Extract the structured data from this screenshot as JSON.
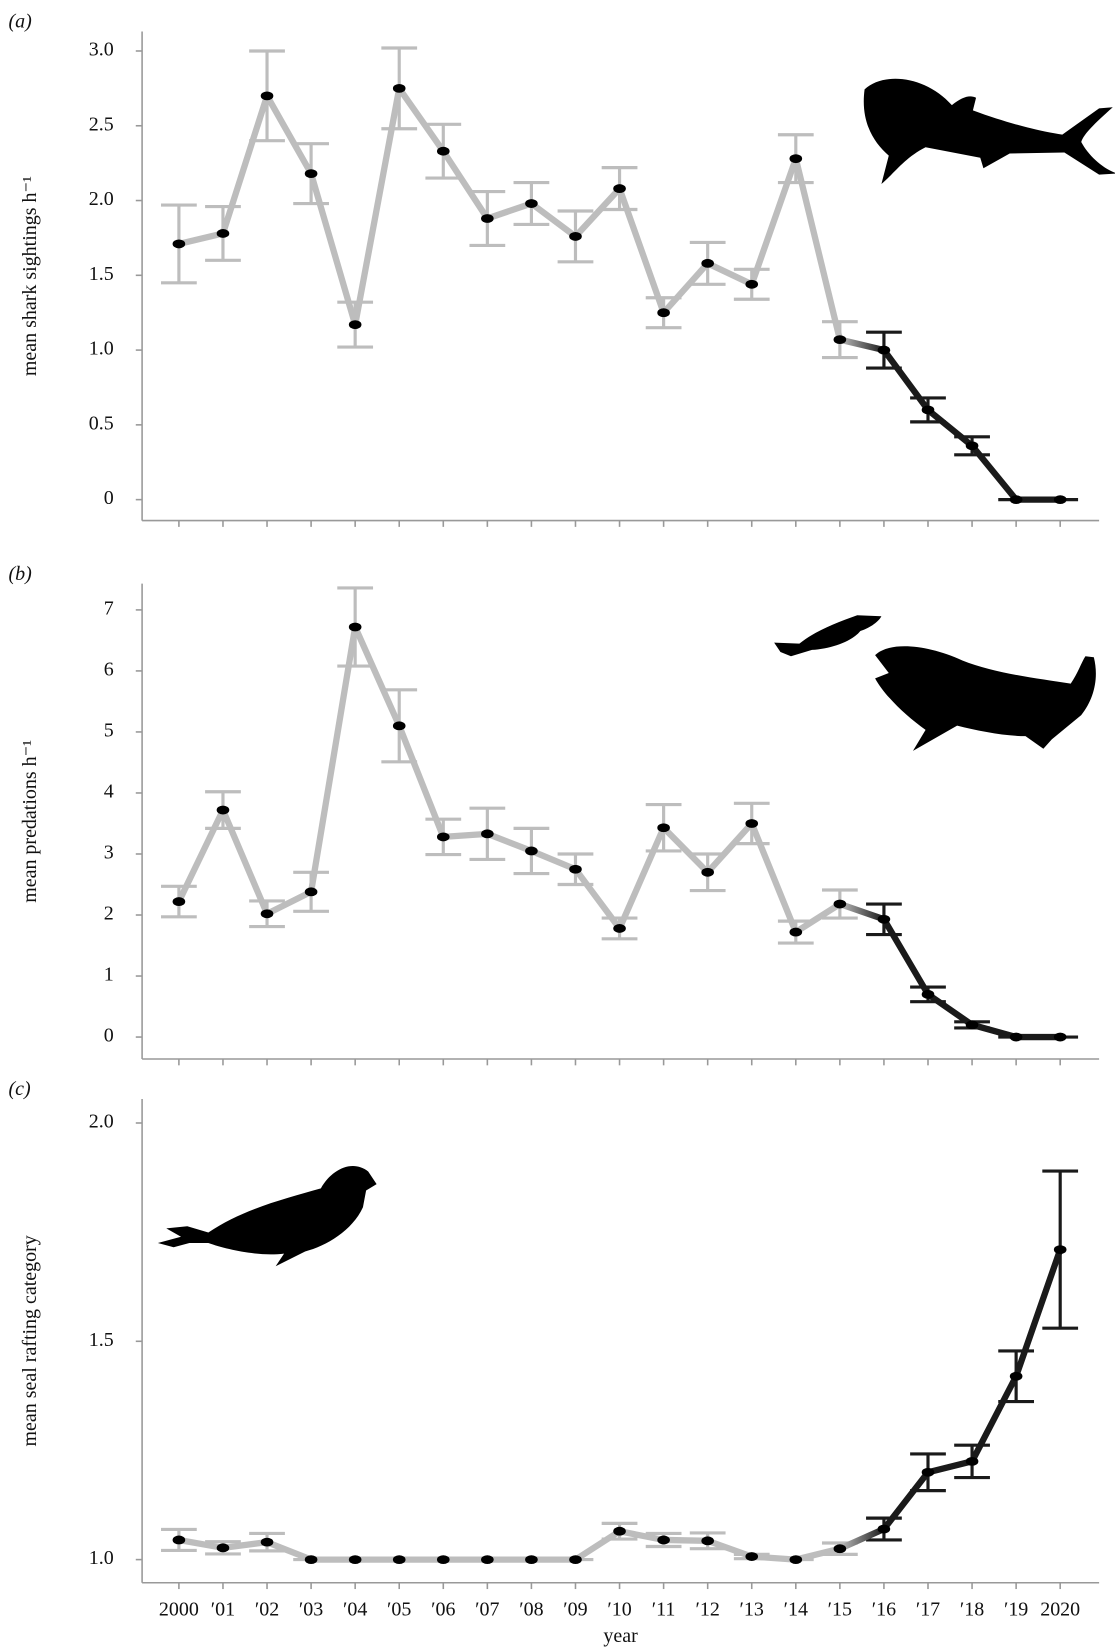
{
  "chart_data": [
    {
      "type": "line",
      "panel": "(a)",
      "ylabel": "mean shark sightings h⁻¹",
      "ylim": [
        -0.14,
        3.13
      ],
      "yticks": [
        0,
        0.5,
        {
          "value": 1,
          "label": "1.0"
        },
        1.5,
        {
          "value": 2,
          "label": "2.0"
        },
        2.5,
        {
          "value": 3,
          "label": "3.0"
        }
      ],
      "values": [
        1.71,
        1.78,
        2.7,
        2.18,
        1.17,
        2.75,
        2.33,
        1.88,
        1.98,
        1.76,
        2.08,
        1.25,
        1.58,
        1.44,
        2.28,
        1.07,
        1.0,
        0.6,
        0.36,
        0,
        0
      ],
      "errors": [
        0.26,
        0.18,
        0.3,
        0.2,
        0.15,
        0.27,
        0.18,
        0.18,
        0.14,
        0.17,
        0.14,
        0.1,
        0.14,
        0.1,
        0.16,
        0.12,
        0.12,
        0.08,
        0.06,
        0,
        0
      ],
      "colors": [
        "#bdbdbd",
        "#bdbdbd",
        "#bdbdbd",
        "#bdbdbd",
        "#bdbdbd",
        "#bdbdbd",
        "#bdbdbd",
        "#bdbdbd",
        "#bdbdbd",
        "#bdbdbd",
        "#bdbdbd",
        "#bdbdbd",
        "#bdbdbd",
        "#bdbdbd",
        "#bdbdbd",
        "#bdbdbd",
        "#1a1a1a",
        "#1a1a1a",
        "#1a1a1a",
        "#1a1a1a",
        "#1a1a1a"
      ],
      "marker_color": "#000000"
    },
    {
      "type": "line",
      "panel": "(b)",
      "ylabel": "mean predations h⁻¹",
      "ylim": [
        -0.36,
        7.43
      ],
      "yticks": [
        0,
        1,
        2,
        3,
        4,
        5,
        6,
        7
      ],
      "values": [
        2.22,
        3.72,
        2.02,
        2.38,
        6.72,
        5.1,
        3.28,
        3.33,
        3.05,
        2.75,
        1.78,
        3.43,
        2.7,
        3.5,
        1.72,
        2.18,
        1.93,
        0.7,
        0.2,
        0,
        0
      ],
      "errors": [
        0.25,
        0.3,
        0.21,
        0.32,
        0.64,
        0.59,
        0.29,
        0.42,
        0.37,
        0.25,
        0.17,
        0.38,
        0.3,
        0.33,
        0.18,
        0.23,
        0.25,
        0.12,
        0.05,
        0,
        0
      ],
      "colors": [
        "#bdbdbd",
        "#bdbdbd",
        "#bdbdbd",
        "#bdbdbd",
        "#bdbdbd",
        "#bdbdbd",
        "#bdbdbd",
        "#bdbdbd",
        "#bdbdbd",
        "#bdbdbd",
        "#bdbdbd",
        "#bdbdbd",
        "#bdbdbd",
        "#bdbdbd",
        "#bdbdbd",
        "#bdbdbd",
        "#1a1a1a",
        "#1a1a1a",
        "#1a1a1a",
        "#1a1a1a",
        "#1a1a1a"
      ],
      "marker_color": "#000000"
    },
    {
      "type": "line",
      "panel": "(c)",
      "ylabel": "mean seal rafting category",
      "xlabel": "year",
      "categories": [
        "2000",
        "′01",
        "′02",
        "′03",
        "′04",
        "′05",
        "′06",
        "′07",
        "′08",
        "′09",
        "′10",
        "′11",
        "′12",
        "′13",
        "′14",
        "′15",
        "′16",
        "′17",
        "′18",
        "′19",
        "2020"
      ],
      "ylim": [
        0.947,
        2.055
      ],
      "yticks": [
        {
          "value": 1,
          "label": "1.0"
        },
        1.5,
        {
          "value": 2,
          "label": "2.0"
        }
      ],
      "values": [
        1.045,
        1.027,
        1.04,
        1.0,
        1.0,
        1.0,
        1.0,
        1.0,
        1.0,
        1.0,
        1.065,
        1.045,
        1.043,
        1.007,
        1.0,
        1.025,
        1.07,
        1.2,
        1.225,
        1.42,
        1.71
      ],
      "errors": [
        0.024,
        0.014,
        0.02,
        0,
        0,
        0,
        0,
        0,
        0,
        0,
        0.018,
        0.015,
        0.018,
        0.005,
        0,
        0.013,
        0.025,
        0.042,
        0.037,
        0.058,
        0.18
      ],
      "colors": [
        "#bdbdbd",
        "#bdbdbd",
        "#bdbdbd",
        "#bdbdbd",
        "#bdbdbd",
        "#bdbdbd",
        "#bdbdbd",
        "#bdbdbd",
        "#bdbdbd",
        "#bdbdbd",
        "#bdbdbd",
        "#bdbdbd",
        "#bdbdbd",
        "#bdbdbd",
        "#bdbdbd",
        "#bdbdbd",
        "#1a1a1a",
        "#1a1a1a",
        "#1a1a1a",
        "#1a1a1a",
        "#1a1a1a"
      ],
      "marker_color": "#000000"
    }
  ]
}
